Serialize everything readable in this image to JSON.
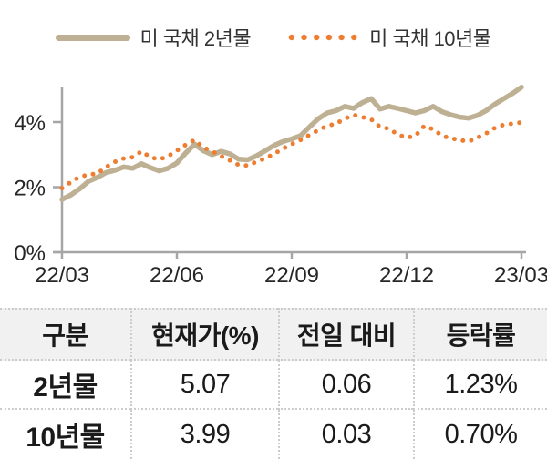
{
  "colors": {
    "series_2y": "#BEB093",
    "series_10y": "#ED7D31",
    "axis": "#A6A6A6",
    "tick_text": "#262626",
    "table_header_bg": "#F1F1F1",
    "table_border": "#CCCCCC",
    "text": "#1A1A1A"
  },
  "chart_data": {
    "type": "line",
    "title": "",
    "xlabel": "",
    "ylabel": "",
    "x_unit": "weeks from 22/03 to 23/03",
    "x_tick_labels": [
      "22/03",
      "22/06",
      "22/09",
      "22/12",
      "23/03"
    ],
    "x_tick_positions": [
      0,
      13,
      26,
      39,
      52
    ],
    "y_ticks": [
      0,
      2,
      4
    ],
    "y_tick_labels": [
      "0%",
      "2%",
      "4%"
    ],
    "ylim": [
      0,
      5.3
    ],
    "grid": false,
    "legend_position": "top",
    "series": [
      {
        "name": "미 국채 2년물",
        "style": "solid",
        "color": "#BEB093",
        "values": [
          1.62,
          1.76,
          1.95,
          2.18,
          2.3,
          2.45,
          2.52,
          2.62,
          2.58,
          2.72,
          2.6,
          2.5,
          2.58,
          2.74,
          3.05,
          3.32,
          3.12,
          3.0,
          3.1,
          3.02,
          2.86,
          2.84,
          2.96,
          3.12,
          3.28,
          3.4,
          3.48,
          3.58,
          3.85,
          4.1,
          4.28,
          4.35,
          4.48,
          4.42,
          4.6,
          4.72,
          4.4,
          4.48,
          4.42,
          4.35,
          4.28,
          4.35,
          4.48,
          4.32,
          4.22,
          4.15,
          4.12,
          4.2,
          4.35,
          4.55,
          4.72,
          4.88,
          5.07
        ]
      },
      {
        "name": "미 국채 10년물",
        "style": "dotted",
        "color": "#ED7D31",
        "values": [
          1.97,
          2.15,
          2.32,
          2.38,
          2.42,
          2.62,
          2.78,
          2.88,
          2.92,
          3.1,
          2.92,
          2.85,
          2.95,
          3.12,
          3.3,
          3.45,
          3.22,
          3.1,
          2.95,
          2.82,
          2.68,
          2.66,
          2.78,
          2.88,
          3.02,
          3.18,
          3.32,
          3.45,
          3.6,
          3.75,
          3.88,
          3.95,
          4.1,
          4.22,
          4.15,
          4.08,
          3.85,
          3.8,
          3.62,
          3.52,
          3.58,
          3.88,
          3.78,
          3.58,
          3.5,
          3.45,
          3.4,
          3.52,
          3.65,
          3.82,
          3.92,
          3.95,
          3.99
        ]
      }
    ]
  },
  "table": {
    "headers": [
      "구분",
      "현재가(%)",
      "전일 대비",
      "등락률"
    ],
    "rows": [
      [
        "2년물",
        "5.07",
        "0.06",
        "1.23%"
      ],
      [
        "10년물",
        "3.99",
        "0.03",
        "0.70%"
      ]
    ]
  }
}
